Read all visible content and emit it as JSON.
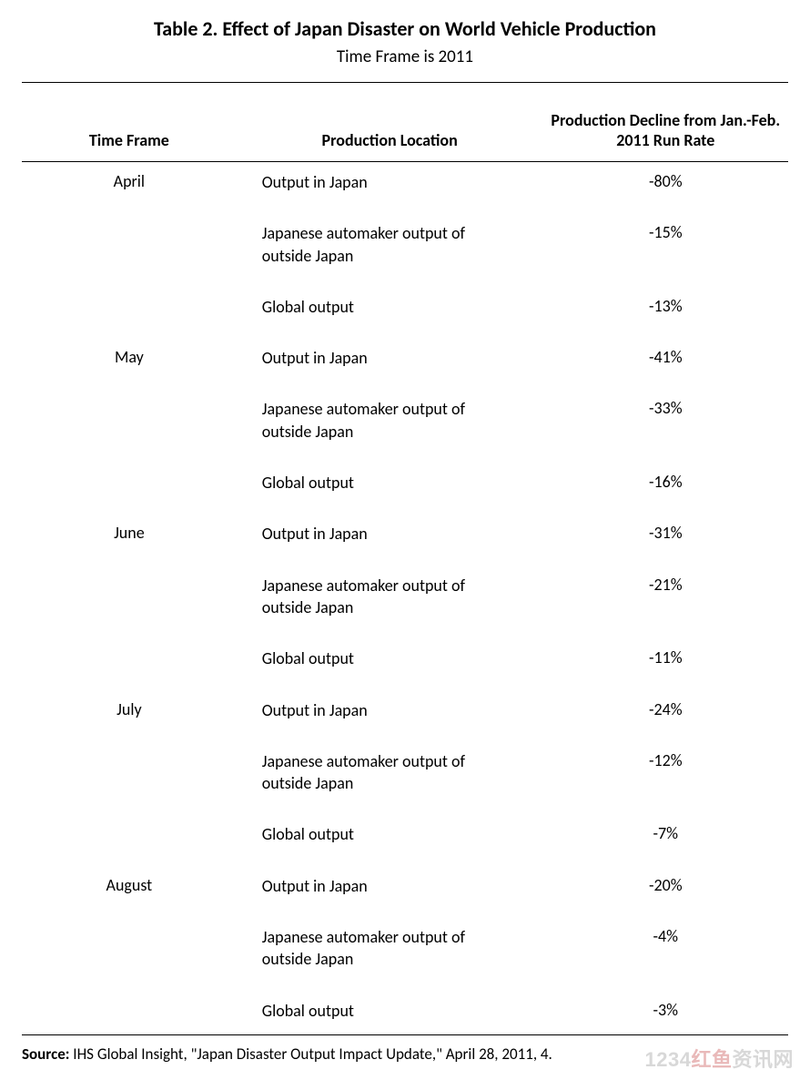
{
  "title": "Table 2. Effect of Japan Disaster on World Vehicle Production",
  "subtitle": "Time Frame is 2011",
  "columns": {
    "time_frame": "Time Frame",
    "location": "Production Location",
    "decline": "Production Decline from Jan.-Feb. 2011 Run Rate"
  },
  "rows": [
    {
      "tf": "April",
      "loc": "Output in Japan",
      "dec": "-80%"
    },
    {
      "tf": "",
      "loc": "Japanese automaker output of outside Japan",
      "dec": "-15%"
    },
    {
      "tf": "",
      "loc": "Global output",
      "dec": "-13%"
    },
    {
      "tf": "May",
      "loc": "Output in Japan",
      "dec": "-41%"
    },
    {
      "tf": "",
      "loc": "Japanese automaker output of outside Japan",
      "dec": "-33%"
    },
    {
      "tf": "",
      "loc": "Global output",
      "dec": "-16%"
    },
    {
      "tf": "June",
      "loc": "Output in Japan",
      "dec": "-31%"
    },
    {
      "tf": "",
      "loc": "Japanese automaker output of outside Japan",
      "dec": "-21%"
    },
    {
      "tf": "",
      "loc": "Global output",
      "dec": "-11%"
    },
    {
      "tf": "July",
      "loc": "Output in Japan",
      "dec": "-24%"
    },
    {
      "tf": "",
      "loc": "Japanese automaker output of outside Japan",
      "dec": "-12%"
    },
    {
      "tf": "",
      "loc": "Global output",
      "dec": "-7%"
    },
    {
      "tf": "August",
      "loc": "Output in Japan",
      "dec": "-20%"
    },
    {
      "tf": "",
      "loc": "Japanese automaker output of outside Japan",
      "dec": "-4%"
    },
    {
      "tf": "",
      "loc": "Global output",
      "dec": "-3%"
    }
  ],
  "source": {
    "label": "Source:",
    "text": " IHS Global Insight, \"Japan Disaster Output Impact Update,\" April 28, 2011, 4."
  },
  "watermark": {
    "num": "1234",
    "red": "红鱼",
    "rest": "资讯网"
  },
  "style": {
    "background": "#ffffff",
    "text_color": "#000000",
    "title_fontsize": 22,
    "subtitle_fontsize": 19,
    "header_fontsize": 18,
    "cell_fontsize": 18,
    "source_fontsize": 17,
    "rule_color": "#000000"
  }
}
